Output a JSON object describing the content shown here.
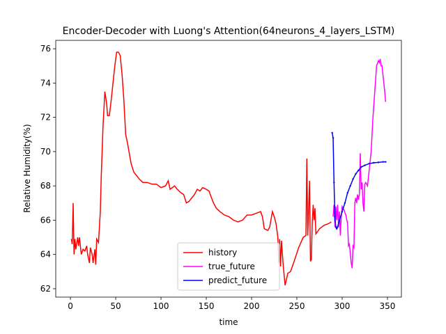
{
  "chart_data": {
    "type": "line",
    "title": "Encoder-Decoder with Luong's Attention(64neurons_4_layers_LSTM)",
    "xlabel": "time",
    "ylabel": "Relative Humidity(%)",
    "xlim": [
      -16.2,
      365.4
    ],
    "xticks": [
      0,
      50,
      100,
      150,
      200,
      250,
      300,
      350
    ],
    "ylim": [
      61.51,
      76.49
    ],
    "yticks": [
      62,
      64,
      66,
      68,
      70,
      72,
      74,
      76
    ],
    "legend": "lower center",
    "series": [
      {
        "name": "history",
        "color": "#ff0000",
        "x": [
          1,
          2,
          3,
          4,
          5,
          6,
          8,
          9,
          10,
          12,
          14,
          16,
          18,
          19,
          21,
          22,
          24,
          25,
          27,
          28,
          29,
          31,
          33,
          34,
          36,
          38,
          40,
          41,
          43,
          45,
          47,
          49,
          51,
          53,
          55,
          57,
          59,
          61,
          63,
          65,
          67,
          70,
          73,
          76,
          80,
          85,
          90,
          95,
          100,
          105,
          108,
          110,
          115,
          118,
          122,
          125,
          128,
          131,
          134,
          137,
          140,
          143,
          146,
          150,
          153,
          155,
          158,
          161,
          165,
          170,
          175,
          180,
          185,
          190,
          195,
          200,
          205,
          210,
          212,
          214,
          218,
          220,
          223,
          225,
          227,
          229,
          230,
          231,
          232,
          233,
          235,
          237,
          240,
          243,
          247,
          252,
          257,
          260,
          261,
          262,
          264,
          265,
          266,
          267,
          268,
          269,
          270,
          271,
          275,
          280,
          285,
          288
        ],
        "values": [
          64.9,
          64.6,
          67.0,
          64.0,
          64.9,
          64.3,
          65.0,
          64.5,
          65.0,
          64.0,
          64.3,
          64.2,
          64.5,
          64.0,
          63.5,
          64.4,
          64.0,
          63.5,
          64.3,
          63.4,
          64.9,
          64.7,
          66.5,
          68.5,
          71.5,
          73.5,
          72.8,
          72.1,
          72.1,
          73.0,
          74.0,
          75.0,
          75.8,
          75.8,
          75.6,
          74.5,
          73.0,
          71.0,
          70.5,
          69.9,
          69.3,
          68.8,
          68.6,
          68.4,
          68.2,
          68.2,
          68.1,
          68.1,
          67.9,
          68.0,
          68.3,
          67.8,
          68.0,
          67.8,
          67.6,
          67.5,
          67.0,
          67.1,
          67.3,
          67.5,
          67.8,
          67.7,
          67.9,
          67.8,
          67.7,
          67.4,
          67.0,
          66.7,
          66.5,
          66.3,
          66.2,
          66.0,
          65.9,
          66.0,
          66.3,
          66.3,
          66.4,
          66.5,
          66.2,
          65.5,
          65.4,
          65.6,
          66.5,
          66.2,
          65.8,
          65.0,
          63.5,
          64.9,
          63.3,
          64.8,
          63.3,
          62.2,
          62.9,
          63.0,
          63.6,
          64.4,
          65.0,
          65.1,
          69.6,
          65.1,
          68.3,
          63.6,
          63.7,
          65.9,
          66.9,
          66.0,
          66.7,
          65.2,
          65.5,
          65.7,
          65.8,
          65.9
        ]
      },
      {
        "name": "true_future",
        "color": "#ff00ff",
        "x": [
          290,
          291,
          292,
          293,
          294,
          295,
          296,
          297,
          298,
          299,
          300,
          302,
          304,
          306,
          307,
          308,
          310,
          311,
          312,
          313,
          314,
          315,
          316,
          317,
          318,
          319,
          320,
          321,
          322,
          323,
          324,
          325,
          326,
          328,
          330,
          332,
          334,
          336,
          338,
          340,
          341,
          342,
          343,
          344,
          345,
          346,
          347,
          348
        ],
        "values": [
          66.2,
          66.9,
          65.6,
          66.8,
          66.0,
          66.9,
          65.6,
          66.5,
          65.1,
          66.2,
          66.8,
          66.6,
          66.3,
          65.8,
          64.5,
          64.6,
          63.5,
          63.2,
          64.5,
          64.4,
          67.0,
          67.3,
          67.0,
          67.5,
          67.2,
          67.5,
          69.9,
          67.8,
          68.2,
          67.0,
          66.5,
          68.1,
          68.2,
          68.0,
          69.0,
          70.0,
          72.0,
          73.5,
          75.0,
          75.3,
          75.2,
          75.4,
          75.0,
          75.0,
          74.5,
          74.0,
          73.5,
          72.9
        ]
      },
      {
        "name": "predict_future",
        "color": "#0000ff",
        "marker": true,
        "x": [
          289,
          290,
          291,
          292,
          293,
          294,
          295,
          297,
          300,
          303,
          306,
          309,
          312,
          315,
          318,
          321,
          325,
          330,
          335,
          340,
          345,
          348
        ],
        "values": [
          71.1,
          70.8,
          68.2,
          66.2,
          65.6,
          65.5,
          65.6,
          66.0,
          66.5,
          67.0,
          67.6,
          68.0,
          68.4,
          68.7,
          68.9,
          69.1,
          69.2,
          69.3,
          69.35,
          69.37,
          69.4,
          69.4
        ]
      }
    ]
  }
}
